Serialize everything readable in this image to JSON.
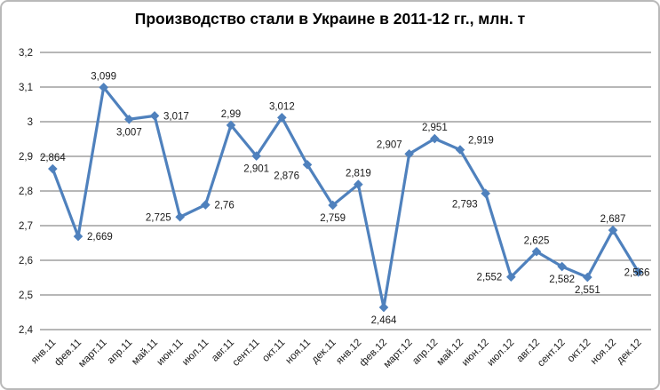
{
  "chart_data": {
    "type": "line",
    "title": "Производство стали в Украине в 2011-12 гг., млн. т",
    "categories": [
      "янв.11",
      "фев.11",
      "март.11",
      "апр.11",
      "май.11",
      "июн.11",
      "июл.11",
      "авг.11",
      "сент.11",
      "окт.11",
      "ноя.11",
      "дек.11",
      "янв.12",
      "фев.12",
      "март.12",
      "апр.12",
      "май.12",
      "июн.12",
      "июл.12",
      "авг.12",
      "сент.12",
      "окт.12",
      "ноя.12",
      "дек.12"
    ],
    "values": [
      2.864,
      2.669,
      3.099,
      3.007,
      3.017,
      2.725,
      2.76,
      2.99,
      2.901,
      3.012,
      2.876,
      2.759,
      2.819,
      2.464,
      2.907,
      2.951,
      2.919,
      2.793,
      2.552,
      2.625,
      2.582,
      2.551,
      2.687,
      2.566
    ],
    "value_labels": [
      "2,864",
      "2,669",
      "3,099",
      "3,007",
      "3,017",
      "2,725",
      "2,76",
      "2,99",
      "2,901",
      "3,012",
      "2,876",
      "2,759",
      "2,819",
      "2,464",
      "2,907",
      "2,951",
      "2,919",
      "2,793",
      "2,552",
      "2,625",
      "2,582",
      "2,551",
      "2,687",
      "2,566"
    ],
    "label_positions": [
      "above",
      "right",
      "above",
      "below",
      "right",
      "left",
      "right",
      "above",
      "below",
      "above",
      "below-left",
      "below",
      "above",
      "below",
      "above-left",
      "above",
      "above-right",
      "below-left",
      "left",
      "above",
      "below",
      "below",
      "above",
      "over-right"
    ],
    "y_axis": {
      "min": 2.4,
      "max": 3.2,
      "step": 0.1,
      "tick_labels_top_to_bottom": [
        "3,2",
        "3,1",
        "3",
        "2,9",
        "2,8",
        "2,7",
        "2,6",
        "2,5",
        "2,4"
      ]
    },
    "grid": true,
    "legend_position": "none",
    "colors": {
      "line": "#4F81BD",
      "marker": "#4F81BD",
      "gridline": "#8C8C8C",
      "axis_line": "#8C8C8C",
      "axis_text": "#1a1a1a",
      "data_label_text": "#1a1a1a",
      "title_text": "#000000",
      "background": "#ffffff",
      "frame_border": "#b9b9b9"
    }
  }
}
